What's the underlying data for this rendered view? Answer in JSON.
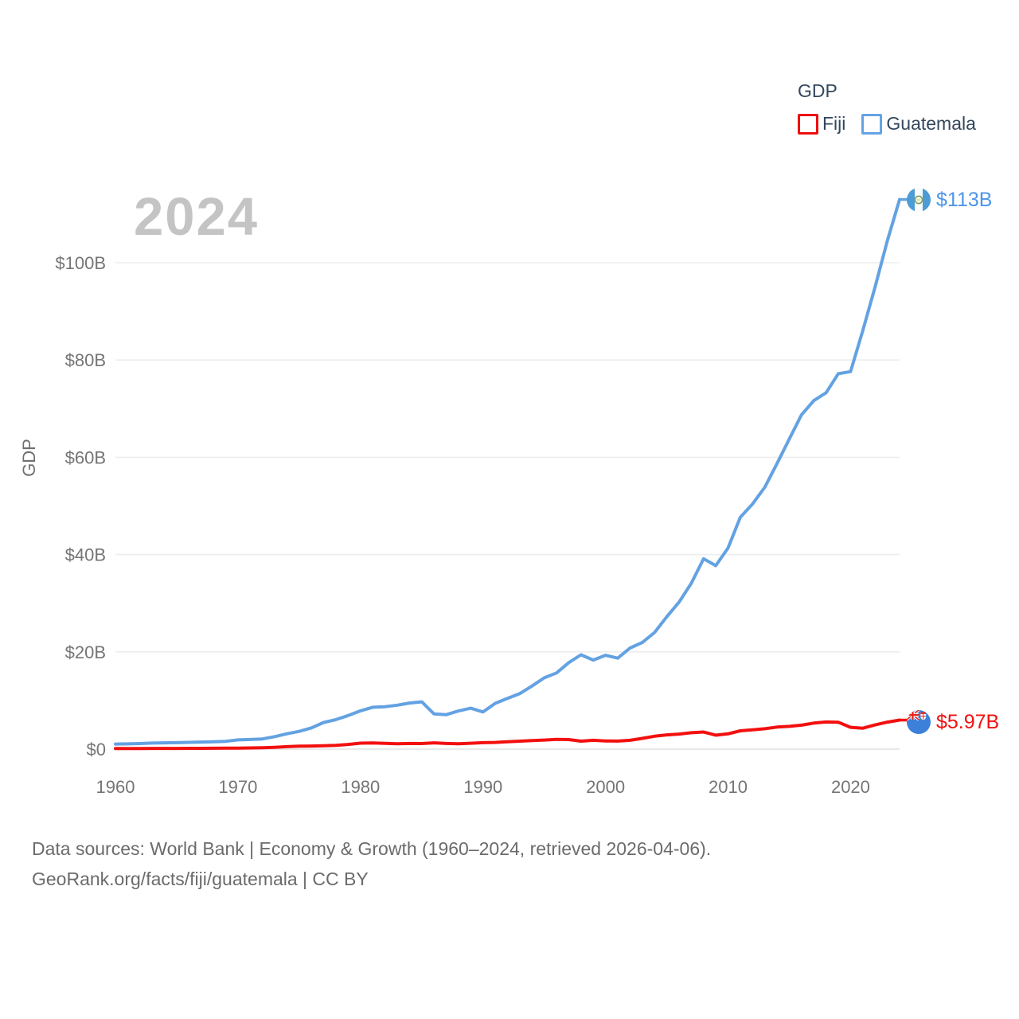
{
  "legend": {
    "title": "GDP",
    "items": [
      {
        "label": "Fiji",
        "color": "#ee0f0f"
      },
      {
        "label": "Guatemala",
        "color": "#64a3e4"
      }
    ]
  },
  "watermark": "2024",
  "end_labels": {
    "guatemala": {
      "value": "$113B"
    },
    "fiji": {
      "value": "$5.97B"
    }
  },
  "footer": {
    "line1": "Data sources: World Bank | Economy & Growth (1960–2024, retrieved 2026-04-06).",
    "line2": "GeoRank.org/facts/fiji/guatemala | CC BY"
  },
  "chart_data": {
    "type": "line",
    "title": "GDP",
    "ylabel": "GDP",
    "xlabel": "",
    "grid": true,
    "legend_position": "top-right",
    "x_min": 1960,
    "x_max": 2024,
    "y_axis_max": 100,
    "ylim": [
      0,
      113
    ],
    "x_label_ticks": [
      1960,
      1970,
      1980,
      1990,
      2000,
      2010,
      2020
    ],
    "y_ticks": [
      {
        "value": 0,
        "label": "$0"
      },
      {
        "value": 20,
        "label": "$20B"
      },
      {
        "value": 40,
        "label": "$40B"
      },
      {
        "value": 60,
        "label": "$60B"
      },
      {
        "value": 80,
        "label": "$80B"
      },
      {
        "value": 100,
        "label": "$100B"
      }
    ],
    "years": [
      1960,
      1961,
      1962,
      1963,
      1964,
      1965,
      1966,
      1967,
      1968,
      1969,
      1970,
      1971,
      1972,
      1973,
      1974,
      1975,
      1976,
      1977,
      1978,
      1979,
      1980,
      1981,
      1982,
      1983,
      1984,
      1985,
      1986,
      1987,
      1988,
      1989,
      1990,
      1991,
      1992,
      1993,
      1994,
      1995,
      1996,
      1997,
      1998,
      1999,
      2000,
      2001,
      2002,
      2003,
      2004,
      2005,
      2006,
      2007,
      2008,
      2009,
      2010,
      2011,
      2012,
      2013,
      2014,
      2015,
      2016,
      2017,
      2018,
      2019,
      2020,
      2021,
      2022,
      2023,
      2024
    ],
    "series": [
      {
        "name": "Fiji",
        "color": "#f2100f",
        "end_label": "$5.97B",
        "values": [
          0.11,
          0.12,
          0.12,
          0.14,
          0.15,
          0.15,
          0.16,
          0.17,
          0.18,
          0.21,
          0.22,
          0.24,
          0.3,
          0.38,
          0.5,
          0.61,
          0.64,
          0.68,
          0.79,
          0.96,
          1.22,
          1.26,
          1.19,
          1.1,
          1.16,
          1.14,
          1.29,
          1.17,
          1.1,
          1.21,
          1.33,
          1.38,
          1.53,
          1.64,
          1.76,
          1.87,
          2.01,
          1.97,
          1.63,
          1.82,
          1.68,
          1.65,
          1.82,
          2.21,
          2.65,
          2.93,
          3.1,
          3.37,
          3.52,
          2.87,
          3.14,
          3.77,
          3.97,
          4.19,
          4.54,
          4.68,
          4.93,
          5.35,
          5.58,
          5.54,
          4.49,
          4.3,
          4.98,
          5.55,
          5.97
        ]
      },
      {
        "name": "Guatemala",
        "color": "#63a2e2",
        "end_label": "$113B",
        "values": [
          1.04,
          1.08,
          1.14,
          1.24,
          1.3,
          1.33,
          1.39,
          1.45,
          1.53,
          1.6,
          1.9,
          1.98,
          2.1,
          2.57,
          3.16,
          3.65,
          4.37,
          5.48,
          6.07,
          6.9,
          7.88,
          8.61,
          8.72,
          9.04,
          9.47,
          9.72,
          7.23,
          7.08,
          7.84,
          8.41,
          7.65,
          9.41,
          10.44,
          11.4,
          12.98,
          14.66,
          15.67,
          17.79,
          19.4,
          18.32,
          19.29,
          18.7,
          20.78,
          21.92,
          23.97,
          27.21,
          30.23,
          34.11,
          39.14,
          37.73,
          41.34,
          47.66,
          50.39,
          53.85,
          58.72,
          63.77,
          68.76,
          71.65,
          73.28,
          77.19,
          77.61,
          86.06,
          95.0,
          104.5,
          113.0
        ]
      }
    ]
  }
}
